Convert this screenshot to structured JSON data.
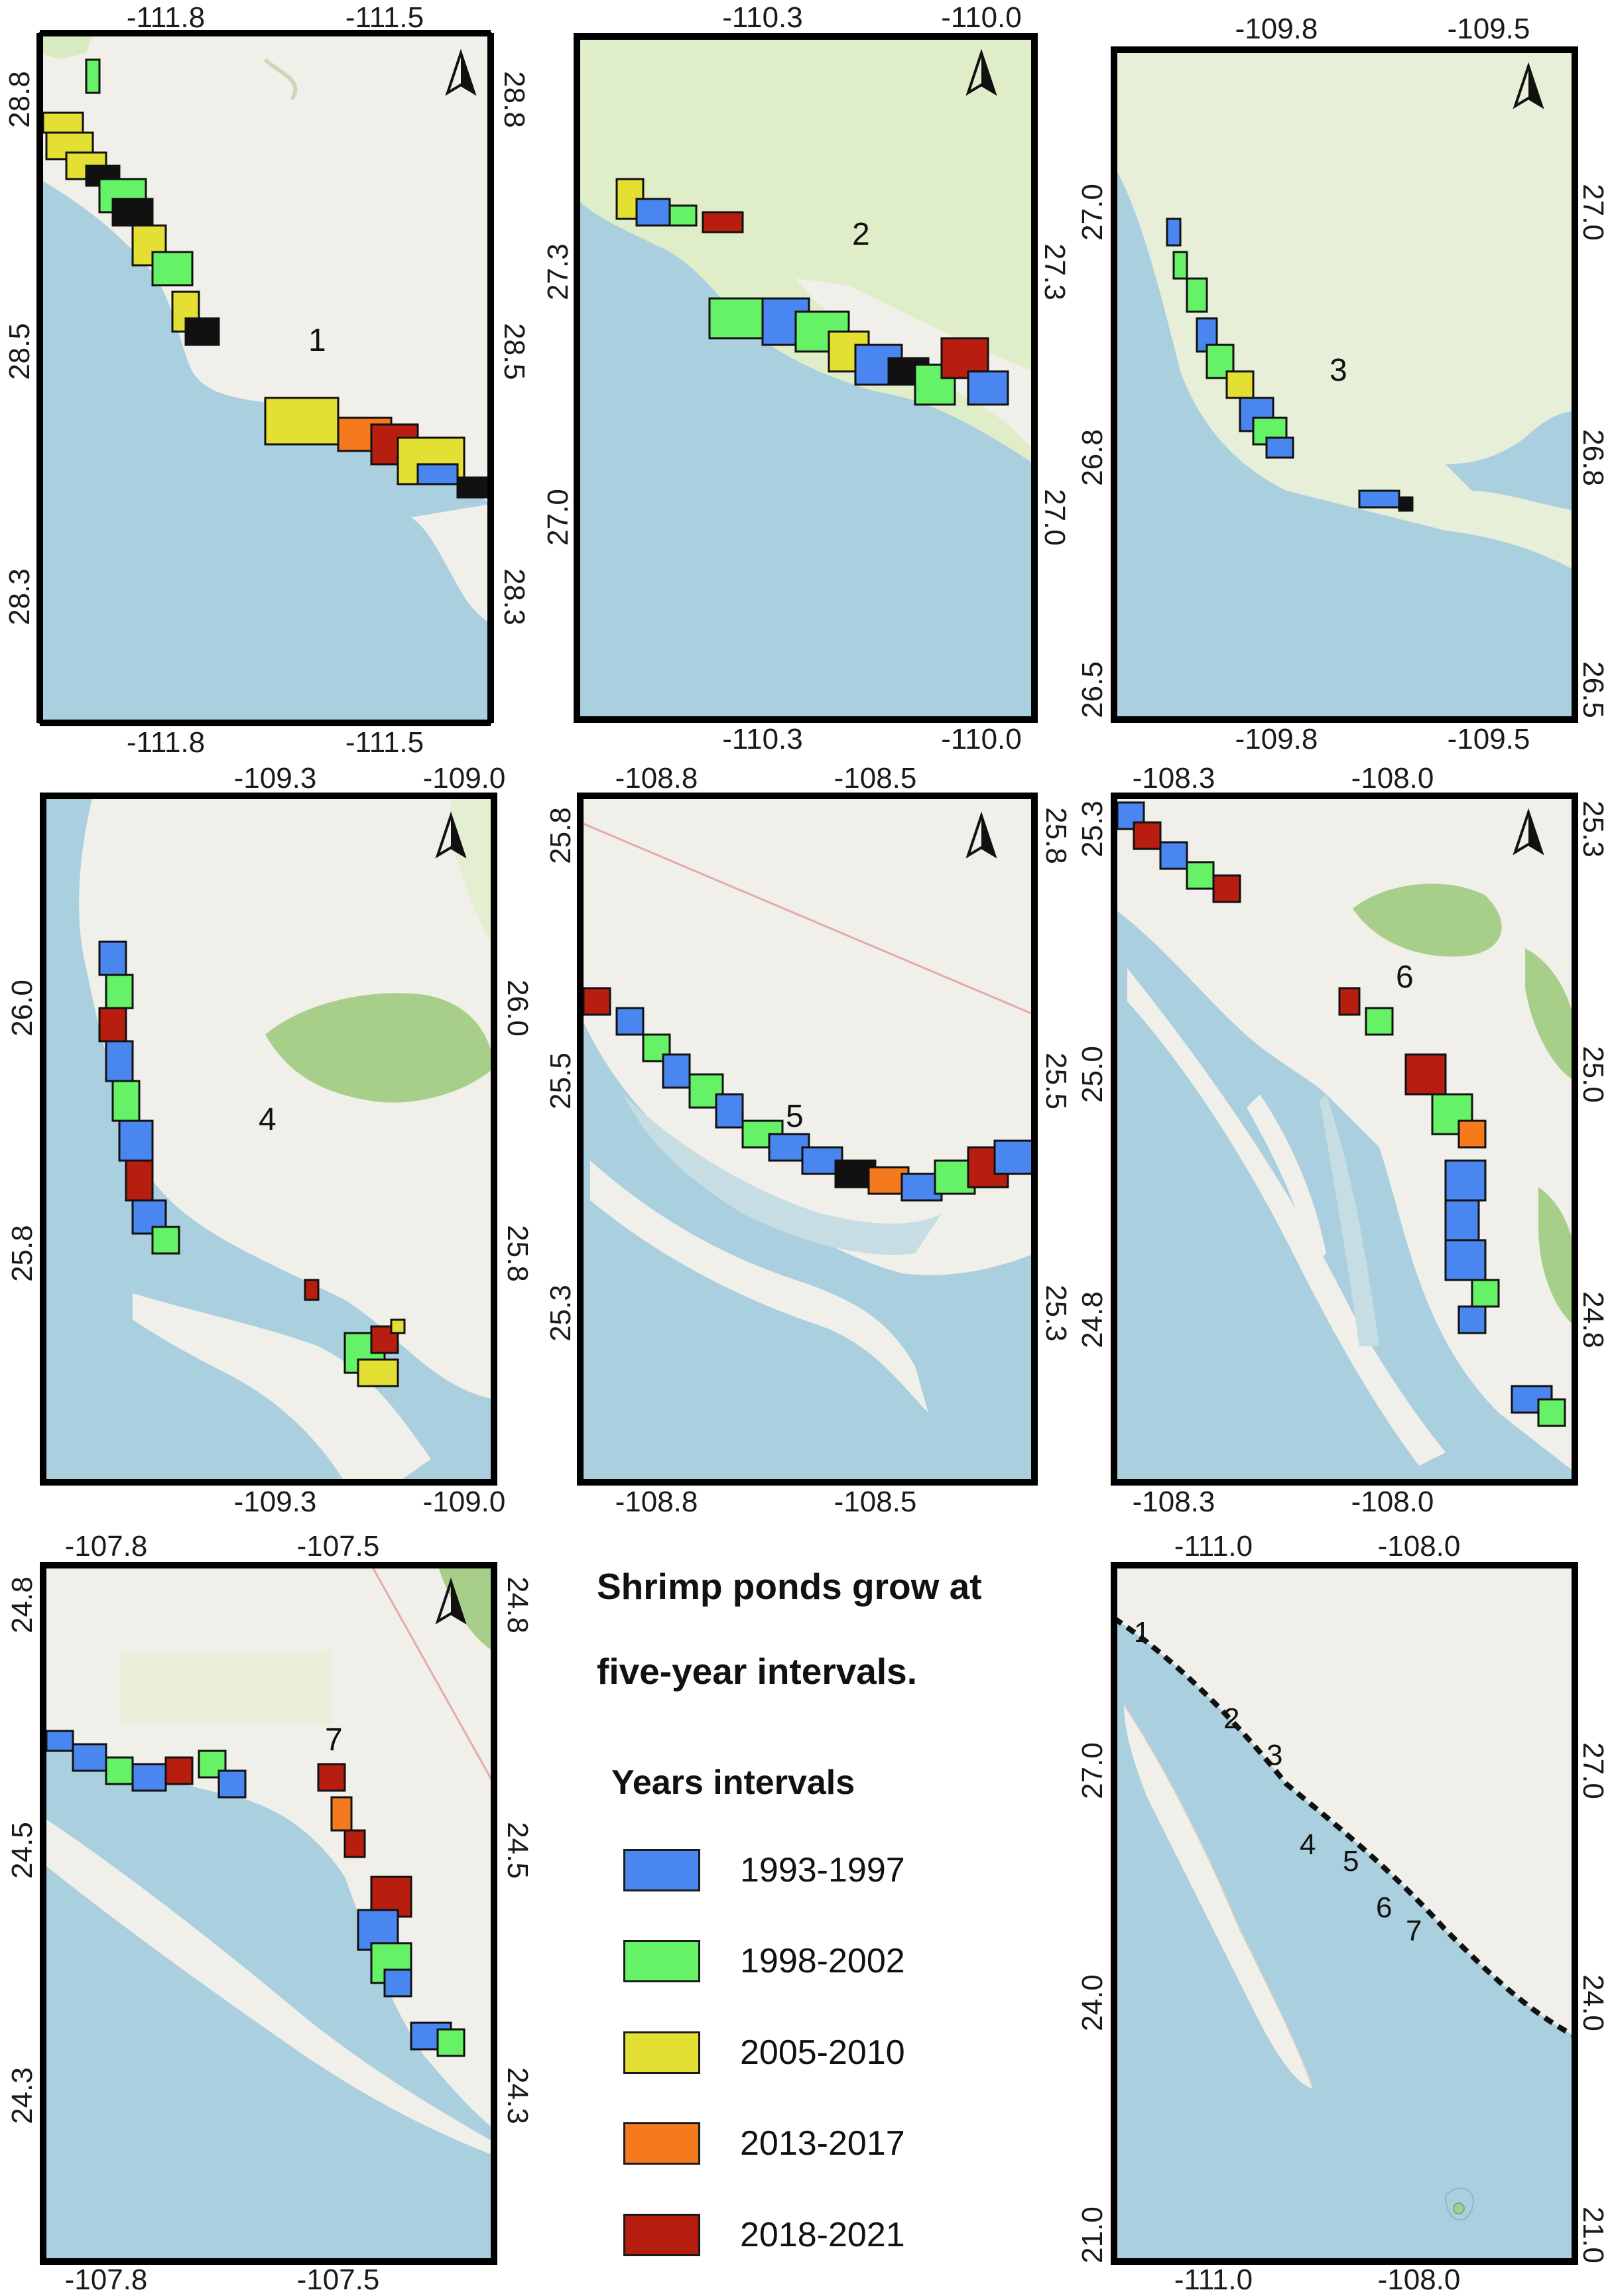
{
  "figure": {
    "title_line1": "Shrimp ponds grow at",
    "title_line2": "five-year intervals.",
    "legend_heading": "Years intervals",
    "legend": [
      {
        "label": "1993-1997",
        "color": "#4a86f0"
      },
      {
        "label": "1998-2002",
        "color": "#66f266"
      },
      {
        "label": "2005-2010",
        "color": "#e3df33"
      },
      {
        "label": "2013-2017",
        "color": "#f57a1d"
      },
      {
        "label": "2018-2021",
        "color": "#b71e10"
      }
    ]
  },
  "colors": {
    "sea": "#aacfdf",
    "land": "#f1efe9",
    "vegetation": "#d9ecc1",
    "forest": "#a7cf8a",
    "frame": "#000000"
  },
  "panels": [
    {
      "label": "1",
      "x_ticks": [
        "-111.8",
        "-111.5"
      ],
      "y_ticks": [
        "28.8",
        "28.5",
        "28.3"
      ]
    },
    {
      "label": "2",
      "x_ticks": [
        "-110.3",
        "-110.0"
      ],
      "y_ticks": [
        "27.3",
        "27.0"
      ]
    },
    {
      "label": "3",
      "x_ticks": [
        "-109.8",
        "-109.5"
      ],
      "y_ticks": [
        "27.0",
        "26.8",
        "26.5"
      ]
    },
    {
      "label": "4",
      "x_ticks": [
        "-109.3",
        "-109.0"
      ],
      "y_ticks": [
        "26.0",
        "25.8"
      ]
    },
    {
      "label": "5",
      "x_ticks": [
        "-108.8",
        "-108.5"
      ],
      "y_ticks": [
        "25.8",
        "25.5",
        "25.3"
      ]
    },
    {
      "label": "6",
      "x_ticks": [
        "-108.3",
        "-108.0"
      ],
      "y_ticks": [
        "25.3",
        "25.0",
        "24.8"
      ]
    },
    {
      "label": "7",
      "x_ticks": [
        "-107.8",
        "-107.5"
      ],
      "y_ticks": [
        "24.8",
        "24.5",
        "24.3"
      ]
    },
    {
      "label": "",
      "x_ticks": [
        "-111.0",
        "-108.0"
      ],
      "y_ticks": [
        "27.0",
        "24.0",
        "21.0"
      ],
      "site_labels": [
        "1",
        "2",
        "3",
        "4",
        "5",
        "6",
        "7"
      ]
    }
  ],
  "icons": {
    "north_arrow": "north-arrow-icon"
  }
}
